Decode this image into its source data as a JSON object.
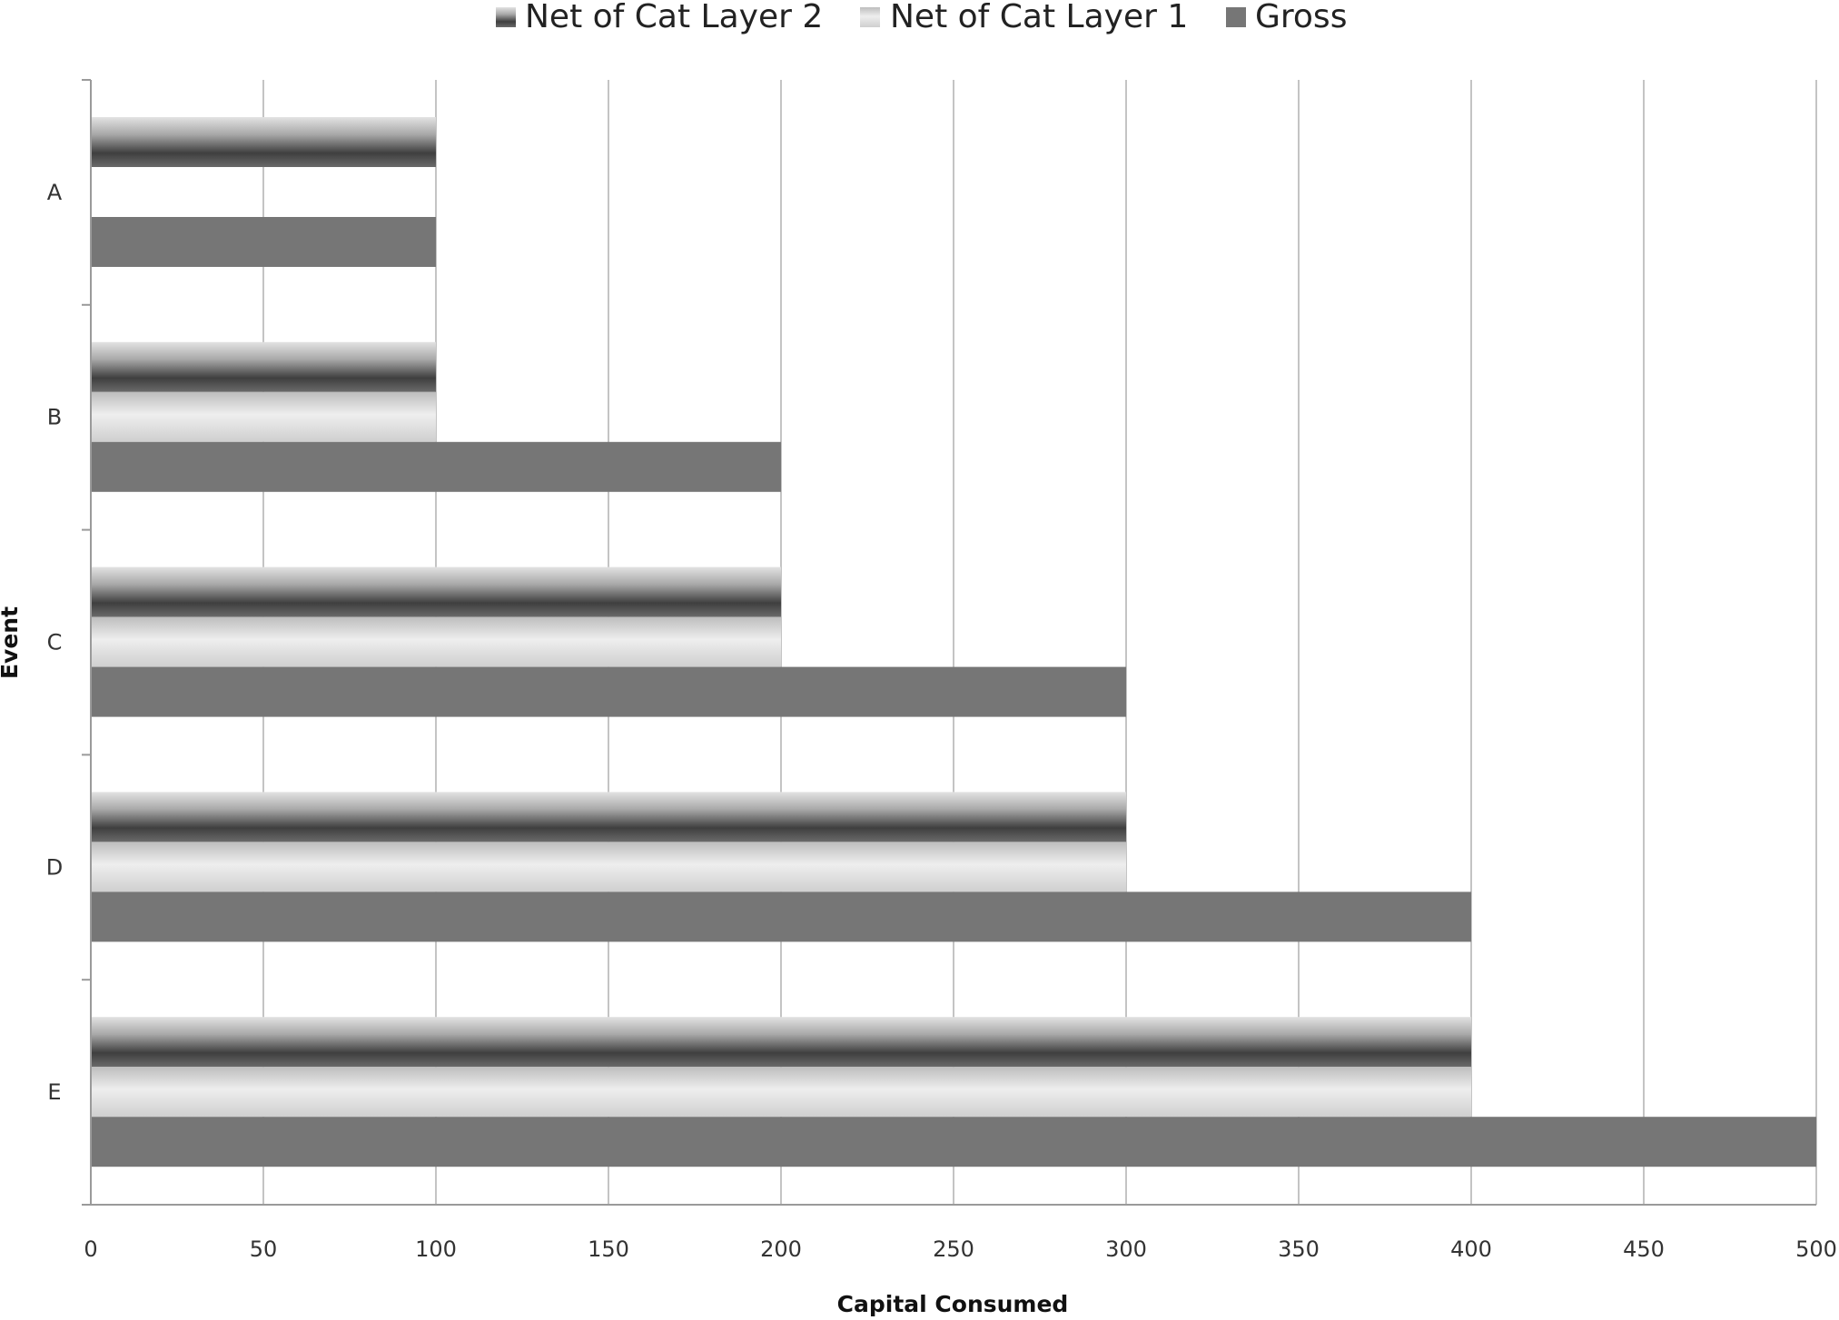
{
  "chart_data": {
    "type": "bar",
    "orientation": "horizontal",
    "categories": [
      "A",
      "B",
      "C",
      "D",
      "E"
    ],
    "series": [
      {
        "name": "Net of Cat Layer 2",
        "values": [
          100,
          100,
          200,
          300,
          400
        ]
      },
      {
        "name": "Net of Cat Layer 1",
        "values": [
          0,
          100,
          200,
          300,
          400
        ]
      },
      {
        "name": "Gross",
        "values": [
          100,
          200,
          300,
          400,
          500
        ]
      }
    ],
    "xlabel": "Capital Consumed",
    "ylabel": "Event",
    "xlim": [
      0,
      500
    ],
    "xticks": [
      "0",
      "50",
      "100",
      "150",
      "200",
      "250",
      "300",
      "350",
      "400",
      "450",
      "500"
    ],
    "grid": "vertical",
    "legend": "top",
    "colors": {
      "gross": "#767676",
      "layer2_dark": "#4a4a4a",
      "layer2_light": "#d8d8d8",
      "layer1_light": "#f0f0f0",
      "layer1_mid": "#bdbdbd",
      "gridline": "#c4c4c4",
      "axis": "#9a9a9a"
    }
  }
}
